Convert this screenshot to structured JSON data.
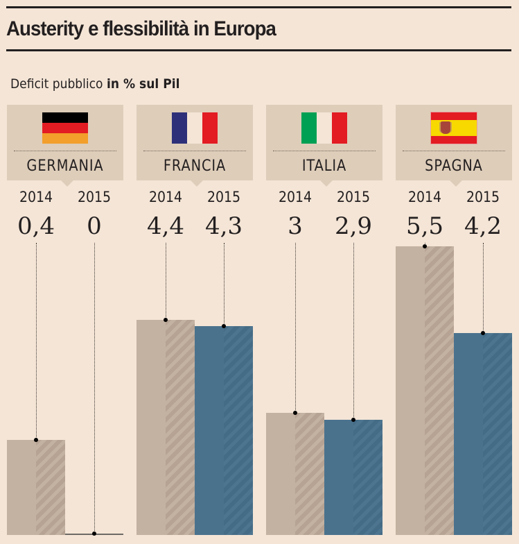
{
  "title": "Austerity e flessibilità in Europa",
  "subtitle": {
    "normal": "Deficit pubblico ",
    "bold": "in % sul Pil"
  },
  "colors": {
    "background": "#f4e5d6",
    "panel": "#decdb9",
    "bar_2014": "#c3b1a1",
    "bar_2015": "#4a728d"
  },
  "countries": [
    {
      "name": "GERMANIA",
      "flag": "germany-flag"
    },
    {
      "name": "FRANCIA",
      "flag": "france-flag"
    },
    {
      "name": "ITALIA",
      "flag": "italy-flag"
    },
    {
      "name": "SPAGNA",
      "flag": "spain-flag"
    }
  ],
  "chart_data": {
    "type": "bar",
    "title": "Austerity e flessibilità in Europa",
    "subtitle": "Deficit pubblico in % sul Pil",
    "categories": [
      "GERMANIA",
      "FRANCIA",
      "ITALIA",
      "SPAGNA"
    ],
    "series": [
      {
        "name": "2014",
        "values": [
          0.4,
          4.4,
          3,
          5.5
        ],
        "labels": [
          "0,4",
          "4,4",
          "3",
          "5,5"
        ]
      },
      {
        "name": "2015",
        "values": [
          0,
          4.3,
          2.9,
          4.2
        ],
        "labels": [
          "0",
          "4,3",
          "2,9",
          "4,2"
        ]
      }
    ],
    "xlabel": "",
    "ylabel": "",
    "grid": false,
    "legend": "none"
  }
}
